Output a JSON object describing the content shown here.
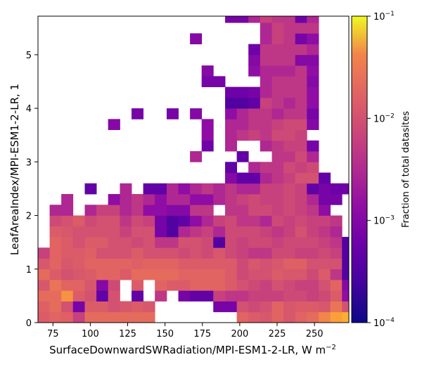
{
  "chart_data": {
    "type": "heatmap",
    "xlabel": "SurfaceDownwardSWRadiation/MPI-ESM1-2-LR,  W m",
    "xlabel_sup": "−2",
    "ylabel": "LeafAreaIndex/MPI-ESM1-2-LR,  1",
    "colorbar_label": "Fraction of total datasites",
    "colorscale": "plasma",
    "color_scale_type": "log",
    "xlim": [
      65,
      273
    ],
    "ylim": [
      0,
      5.72
    ],
    "x_ticks": [
      75,
      100,
      125,
      150,
      175,
      200,
      225,
      250
    ],
    "y_ticks": [
      0,
      1,
      2,
      3,
      4,
      5
    ],
    "x_tick_labels": [
      "75",
      "100",
      "125",
      "150",
      "175",
      "200",
      "225",
      "250"
    ],
    "y_tick_labels": [
      "0",
      "1",
      "2",
      "3",
      "4",
      "5"
    ],
    "colorbar_range": [
      0.0001,
      0.1
    ],
    "colorbar_ticks": [
      0.1,
      0.01,
      0.001,
      0.0001
    ],
    "colorbar_tick_labels": [
      "10",
      "10",
      "10",
      "10"
    ],
    "colorbar_tick_sups": [
      "−1",
      "−2",
      "−3",
      "−4"
    ],
    "x_edges": [
      65.0,
      72.8,
      80.6,
      88.4,
      96.3,
      104.1,
      111.9,
      119.8,
      127.6,
      135.4,
      143.2,
      151.1,
      158.9,
      166.7,
      174.5,
      182.3,
      190.2,
      198.0,
      205.8,
      213.6,
      221.5,
      229.3,
      237.1,
      244.9,
      252.8,
      260.6,
      268.4,
      272.7
    ],
    "y_edges": [
      0,
      0.2,
      0.4,
      0.6,
      0.8,
      1.0,
      1.2,
      1.4,
      1.6,
      1.8,
      2.0,
      2.2,
      2.4,
      2.6,
      2.8,
      3.0,
      3.2,
      3.4,
      3.6,
      3.8,
      4.0,
      4.2,
      4.4,
      4.6,
      4.8,
      5.0,
      5.2,
      5.4,
      5.6,
      5.72
    ],
    "values": [
      [
        0.008,
        0.01,
        0.009,
        0.004,
        0.012,
        0.012,
        0.012,
        0.012,
        0.012,
        0.012,
        null,
        null,
        null,
        null,
        null,
        null,
        null,
        0.01,
        0.008,
        0.007,
        0.01,
        0.007,
        0.01,
        0.012,
        0.022,
        0.04,
        0.05
      ],
      [
        0.009,
        0.012,
        0.006,
        0.0006,
        0.008,
        0.008,
        0.006,
        0.007,
        0.008,
        0.007,
        null,
        null,
        null,
        null,
        null,
        0.0006,
        0.0006,
        0.006,
        0.005,
        0.006,
        0.01,
        0.007,
        0.008,
        0.008,
        0.007,
        0.015,
        0.006
      ],
      [
        0.012,
        0.012,
        0.03,
        0.008,
        0.006,
        0.0004,
        0.006,
        null,
        0.0004,
        null,
        0.003,
        null,
        0.0006,
        0.0004,
        0.0004,
        0.004,
        0.003,
        0.003,
        0.004,
        0.004,
        0.004,
        0.005,
        0.005,
        0.004,
        0.005,
        0.008,
        0.001
      ],
      [
        0.007,
        0.015,
        0.01,
        0.01,
        0.007,
        0.0008,
        0.005,
        null,
        0.008,
        null,
        0.01,
        0.008,
        0.008,
        0.01,
        0.01,
        0.01,
        0.008,
        0.006,
        0.005,
        0.004,
        0.006,
        0.005,
        0.004,
        0.004,
        0.006,
        0.01,
        0.0008
      ],
      [
        0.012,
        0.008,
        0.006,
        0.007,
        0.008,
        0.01,
        0.01,
        0.008,
        0.012,
        0.012,
        0.012,
        0.012,
        0.01,
        0.01,
        0.01,
        0.01,
        0.008,
        0.005,
        0.006,
        0.006,
        0.008,
        0.007,
        0.007,
        0.005,
        0.008,
        0.003,
        0.0003
      ],
      [
        0.007,
        0.01,
        0.007,
        0.008,
        0.01,
        0.01,
        0.01,
        0.01,
        0.009,
        0.01,
        0.01,
        0.01,
        0.008,
        0.008,
        0.008,
        0.008,
        0.008,
        0.005,
        0.007,
        0.006,
        0.007,
        0.009,
        0.009,
        0.006,
        0.006,
        0.006,
        0.0003
      ],
      [
        0.004,
        0.01,
        0.008,
        0.008,
        0.009,
        0.006,
        0.006,
        0.006,
        0.008,
        0.006,
        0.006,
        0.006,
        0.005,
        0.006,
        0.005,
        0.007,
        0.005,
        0.004,
        0.003,
        0.003,
        0.005,
        0.005,
        0.004,
        0.004,
        0.005,
        0.004,
        0.0003
      ],
      [
        null,
        0.01,
        0.008,
        0.006,
        0.008,
        0.008,
        0.006,
        0.006,
        0.005,
        0.006,
        0.003,
        0.003,
        0.006,
        0.006,
        0.005,
        0.0003,
        0.005,
        0.004,
        0.005,
        0.005,
        0.004,
        0.005,
        0.005,
        0.005,
        0.004,
        0.003,
        0.0003
      ],
      [
        null,
        0.008,
        0.007,
        0.006,
        0.006,
        0.006,
        0.006,
        0.004,
        0.006,
        0.006,
        0.0006,
        0.0003,
        0.002,
        0.003,
        0.004,
        0.002,
        0.005,
        0.005,
        0.005,
        0.004,
        0.003,
        0.004,
        0.006,
        0.004,
        0.003,
        0.002,
        null
      ],
      [
        null,
        0.005,
        0.006,
        0.008,
        0.005,
        0.006,
        0.006,
        0.003,
        0.005,
        0.004,
        0.0006,
        0.0003,
        0.0004,
        0.001,
        0.002,
        0.004,
        0.005,
        0.003,
        0.003,
        0.002,
        0.005,
        0.004,
        0.005,
        0.004,
        0.004,
        0.003,
        null
      ],
      [
        null,
        0.002,
        0.002,
        null,
        0.002,
        0.004,
        0.004,
        0.002,
        0.003,
        0.001,
        0.001,
        0.0008,
        0.0008,
        0.003,
        0.003,
        null,
        0.003,
        0.003,
        0.005,
        0.005,
        0.004,
        0.005,
        0.004,
        0.003,
        0.001,
        null,
        null
      ],
      [
        null,
        null,
        0.002,
        null,
        null,
        null,
        0.001,
        0.002,
        0.003,
        0.002,
        0.001,
        0.002,
        0.002,
        0.001,
        0.001,
        0.002,
        0.003,
        0.004,
        0.005,
        0.004,
        0.004,
        0.005,
        0.004,
        0.002,
        0.0006,
        0.0006,
        null
      ],
      [
        null,
        null,
        null,
        null,
        0.0004,
        null,
        null,
        0.002,
        null,
        0.0004,
        0.0004,
        0.002,
        0.001,
        0.002,
        0.003,
        0.002,
        0.003,
        0.002,
        0.002,
        0.004,
        0.004,
        0.005,
        0.004,
        0.0004,
        0.0006,
        0.0005,
        0.0005
      ],
      [
        null,
        null,
        null,
        null,
        null,
        null,
        null,
        null,
        null,
        null,
        null,
        null,
        null,
        null,
        null,
        null,
        0.0008,
        0.0004,
        0.0004,
        0.002,
        0.003,
        0.004,
        0.006,
        0.006,
        0.0004,
        null,
        null
      ],
      [
        null,
        null,
        null,
        null,
        null,
        null,
        null,
        null,
        null,
        null,
        null,
        null,
        null,
        null,
        null,
        null,
        0.0004,
        null,
        0.002,
        0.003,
        0.003,
        0.005,
        0.004,
        0.005,
        null,
        null,
        null
      ],
      [
        null,
        null,
        null,
        null,
        null,
        null,
        null,
        null,
        null,
        null,
        null,
        null,
        null,
        0.002,
        null,
        null,
        null,
        0.0004,
        null,
        null,
        0.003,
        0.003,
        0.005,
        0.002,
        null,
        null,
        null
      ],
      [
        null,
        null,
        null,
        null,
        null,
        null,
        null,
        null,
        null,
        null,
        null,
        null,
        null,
        null,
        0.0005,
        null,
        0.002,
        null,
        null,
        0.002,
        0.003,
        0.004,
        0.004,
        0.0006,
        null,
        null,
        null
      ],
      [
        null,
        null,
        null,
        null,
        null,
        null,
        null,
        null,
        null,
        null,
        null,
        null,
        null,
        null,
        0.001,
        null,
        0.002,
        0.003,
        0.004,
        0.003,
        0.005,
        0.005,
        0.004,
        null,
        null,
        null,
        null
      ],
      [
        null,
        null,
        null,
        null,
        null,
        null,
        0.0008,
        null,
        null,
        null,
        null,
        null,
        null,
        null,
        0.001,
        null,
        0.002,
        0.002,
        0.003,
        0.003,
        0.004,
        0.005,
        0.005,
        0.0008,
        null,
        null,
        null
      ],
      [
        null,
        null,
        null,
        null,
        null,
        null,
        null,
        null,
        0.0006,
        null,
        null,
        0.0006,
        null,
        0.0008,
        null,
        null,
        0.001,
        0.002,
        0.003,
        0.003,
        0.002,
        0.003,
        0.003,
        0.0006,
        null,
        null,
        null
      ],
      [
        null,
        null,
        null,
        null,
        null,
        null,
        null,
        null,
        null,
        null,
        null,
        null,
        null,
        null,
        null,
        null,
        0.0003,
        0.0003,
        0.0004,
        0.004,
        0.003,
        0.002,
        0.003,
        0.001,
        null,
        null,
        null
      ],
      [
        null,
        null,
        null,
        null,
        null,
        null,
        null,
        null,
        null,
        null,
        null,
        null,
        null,
        null,
        null,
        null,
        0.0005,
        0.0005,
        0.0006,
        0.002,
        0.003,
        0.003,
        0.003,
        0.001,
        null,
        null,
        null
      ],
      [
        null,
        null,
        null,
        null,
        null,
        null,
        null,
        null,
        null,
        null,
        null,
        null,
        null,
        null,
        0.0006,
        0.0006,
        null,
        null,
        null,
        0.002,
        0.003,
        0.003,
        0.003,
        0.0008,
        null,
        null,
        null
      ],
      [
        null,
        null,
        null,
        null,
        null,
        null,
        null,
        null,
        null,
        null,
        null,
        null,
        null,
        null,
        0.0008,
        null,
        null,
        null,
        0.001,
        0.002,
        0.002,
        0.002,
        0.003,
        0.001,
        null,
        null,
        null
      ],
      [
        null,
        null,
        null,
        null,
        null,
        null,
        null,
        null,
        null,
        null,
        null,
        null,
        null,
        null,
        null,
        null,
        null,
        null,
        0.0008,
        0.003,
        0.003,
        0.003,
        0.0008,
        0.0008,
        null,
        null,
        null
      ],
      [
        null,
        null,
        null,
        null,
        null,
        null,
        null,
        null,
        null,
        null,
        null,
        null,
        null,
        null,
        null,
        null,
        null,
        null,
        0.0005,
        0.003,
        0.003,
        0.003,
        0.003,
        0.002,
        null,
        null,
        null
      ],
      [
        null,
        null,
        null,
        null,
        null,
        null,
        null,
        null,
        null,
        null,
        null,
        null,
        null,
        0.0008,
        null,
        null,
        null,
        null,
        null,
        0.002,
        0.004,
        0.003,
        0.0006,
        0.001,
        null,
        null,
        null
      ],
      [
        null,
        null,
        null,
        null,
        null,
        null,
        null,
        null,
        null,
        null,
        null,
        null,
        null,
        null,
        null,
        null,
        null,
        null,
        null,
        0.002,
        0.004,
        0.003,
        0.003,
        0.003,
        null,
        null,
        null
      ],
      [
        null,
        null,
        null,
        null,
        null,
        null,
        null,
        null,
        null,
        null,
        null,
        null,
        null,
        null,
        null,
        null,
        0.0006,
        0.0006,
        0.002,
        0.004,
        0.003,
        0.003,
        0.0005,
        0.002,
        null,
        null,
        null
      ]
    ]
  }
}
